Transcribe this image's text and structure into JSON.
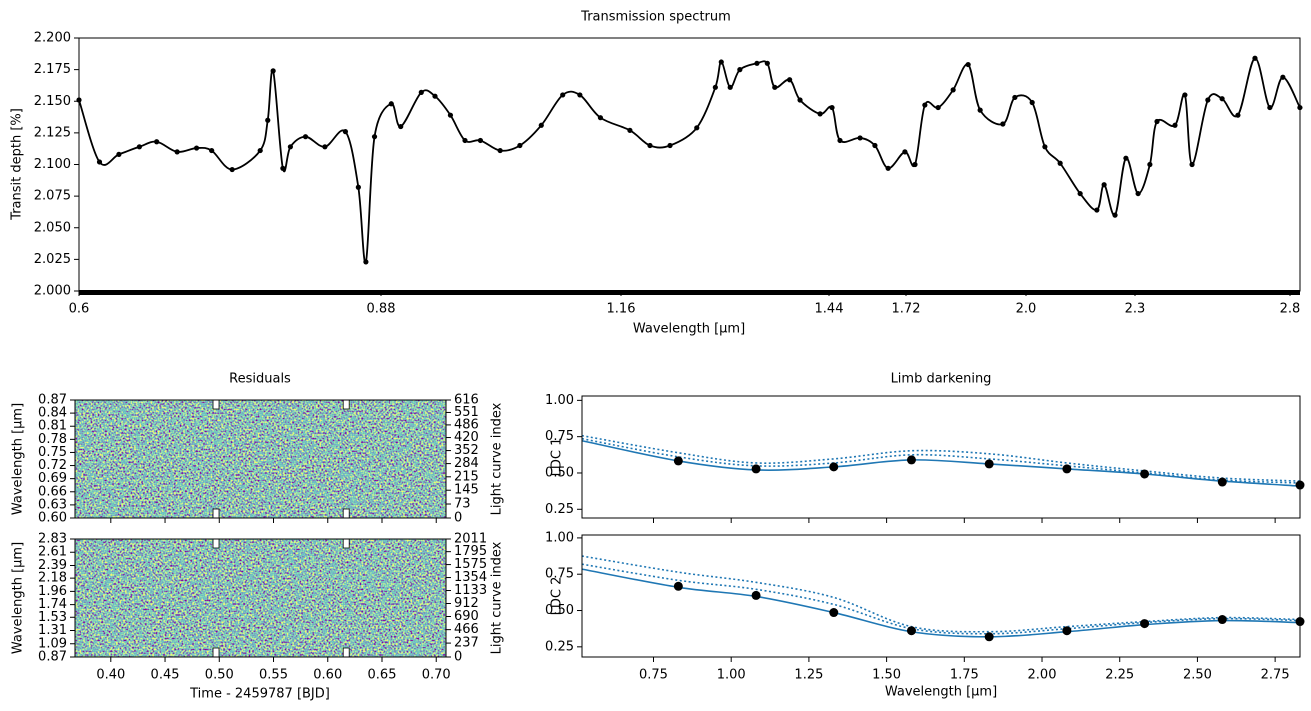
{
  "chart_data": [
    {
      "type": "line",
      "title": "Transmission spectrum",
      "xlabel": "Wavelength [μm]",
      "ylabel": "Transit depth [%]",
      "color": "#000000",
      "xlim": [
        0.6,
        2.832
      ],
      "ylim": [
        2.0,
        2.2
      ],
      "xticks": [
        0.6,
        0.88,
        1.16,
        1.44,
        1.72,
        {
          "value": 2,
          "label": "2.0"
        },
        2.3,
        2.8
      ],
      "yticks": [
        {
          "value": 2.0,
          "label": "2.000"
        },
        {
          "value": 2.025,
          "label": "2.025"
        },
        {
          "value": 2.05,
          "label": "2.050"
        },
        {
          "value": 2.075,
          "label": "2.075"
        },
        {
          "value": 2.1,
          "label": "2.100"
        },
        {
          "value": 2.125,
          "label": "2.125"
        },
        {
          "value": 2.15,
          "label": "2.150"
        },
        {
          "value": 2.175,
          "label": "2.175"
        },
        {
          "value": 2.2,
          "label": "2.200"
        }
      ],
      "x": [
        0.6,
        0.619,
        0.637,
        0.656,
        0.672,
        0.691,
        0.709,
        0.723,
        0.742,
        0.768,
        0.775,
        0.78,
        0.789,
        0.796,
        0.81,
        0.828,
        0.847,
        0.859,
        0.866,
        0.874,
        0.892,
        0.903,
        0.927,
        0.943,
        0.961,
        0.978,
        0.996,
        1.019,
        1.042,
        1.067,
        1.092,
        1.112,
        1.136,
        1.172,
        1.199,
        1.226,
        1.262,
        1.287,
        1.295,
        1.307,
        1.32,
        1.343,
        1.357,
        1.367,
        1.387,
        1.401,
        1.428,
        1.451,
        1.48,
        1.553,
        1.607,
        1.655,
        1.716,
        1.741,
        1.764,
        1.795,
        1.83,
        1.865,
        1.893,
        1.946,
        1.974,
        2.017,
        2.052,
        2.094,
        2.149,
        2.195,
        2.215,
        2.245,
        2.275,
        2.31,
        2.348,
        2.371,
        2.429,
        2.461,
        2.484,
        2.535,
        2.581,
        2.632,
        2.687,
        2.735,
        2.777,
        2.832
      ],
      "values": [
        2.151,
        2.102,
        2.108,
        2.114,
        2.118,
        2.11,
        2.113,
        2.111,
        2.096,
        2.111,
        2.135,
        2.174,
        2.097,
        2.114,
        2.122,
        2.114,
        2.126,
        2.082,
        2.023,
        2.122,
        2.148,
        2.13,
        2.157,
        2.154,
        2.139,
        2.119,
        2.119,
        2.111,
        2.115,
        2.131,
        2.155,
        2.155,
        2.137,
        2.127,
        2.115,
        2.115,
        2.129,
        2.161,
        2.181,
        2.161,
        2.175,
        2.18,
        2.18,
        2.161,
        2.167,
        2.151,
        2.14,
        2.145,
        2.119,
        2.121,
        2.115,
        2.097,
        2.11,
        2.1,
        2.147,
        2.145,
        2.159,
        2.179,
        2.143,
        2.132,
        2.153,
        2.149,
        2.114,
        2.101,
        2.077,
        2.064,
        2.084,
        2.06,
        2.105,
        2.077,
        2.1,
        2.134,
        2.131,
        2.155,
        2.1,
        2.151,
        2.152,
        2.139,
        2.184,
        2.145,
        2.169,
        2.145
      ]
    },
    {
      "type": "heatmap",
      "title": "Residuals",
      "ylabel": "Wavelength [μm]",
      "y2label": "Light curve index",
      "xlim": [
        0.367,
        0.709
      ],
      "ylim": [
        0.6,
        0.87
      ],
      "y2lim": [
        0,
        616
      ],
      "yticks": [
        {
          "value": 0.6,
          "label": "0.60"
        },
        0.63,
        0.66,
        0.69,
        0.72,
        0.75,
        0.78,
        0.81,
        0.84,
        0.87
      ],
      "y2ticks": [
        0,
        73,
        145,
        215,
        284,
        352,
        420,
        486,
        551,
        616
      ],
      "vlines": [
        0.497,
        0.617
      ]
    },
    {
      "type": "heatmap",
      "xlabel": "Time - 2459787 [BJD]",
      "ylabel": "Wavelength [μm]",
      "y2label": "Light curve index",
      "xlim": [
        0.367,
        0.709
      ],
      "ylim": [
        0.87,
        2.83
      ],
      "y2lim": [
        0,
        2011
      ],
      "xticks": [
        {
          "value": 0.4,
          "label": "0.40"
        },
        0.45,
        {
          "value": 0.5,
          "label": "0.50"
        },
        0.55,
        {
          "value": 0.6,
          "label": "0.60"
        },
        0.65,
        {
          "value": 0.7,
          "label": "0.70"
        }
      ],
      "yticks": [
        0.87,
        1.09,
        1.31,
        1.53,
        1.74,
        1.96,
        2.18,
        2.39,
        2.61,
        2.83
      ],
      "y2ticks": [
        0,
        237,
        466,
        690,
        912,
        1133,
        1354,
        1575,
        1795,
        2011
      ],
      "vlines": [
        0.497,
        0.617
      ]
    },
    {
      "type": "line",
      "title": "Limb darkening",
      "ylabel": "LDC 1",
      "xlim": [
        0.52,
        2.83
      ],
      "ylim": [
        0.19,
        1.03
      ],
      "yticks": [
        {
          "value": 0.25,
          "label": "0.25"
        },
        {
          "value": 0.5,
          "label": "0.50"
        },
        {
          "value": 0.75,
          "label": "0.75"
        },
        {
          "value": 1.0,
          "label": "1.00"
        }
      ],
      "series": [
        {
          "color": "#1f77b4",
          "linestyle": "dotted",
          "x": [
            0.52,
            0.83,
            1.08,
            1.33,
            1.58,
            1.83,
            2.08,
            2.33,
            2.58,
            2.83
          ],
          "values": [
            0.757,
            0.639,
            0.569,
            0.597,
            0.653,
            0.632,
            0.569,
            0.514,
            0.465,
            0.444
          ]
        },
        {
          "color": "#1f77b4",
          "linestyle": "dotted",
          "x": [
            0.52,
            0.83,
            1.08,
            1.33,
            1.58,
            1.83,
            2.08,
            2.33,
            2.58,
            2.83
          ],
          "values": [
            0.736,
            0.611,
            0.549,
            0.569,
            0.625,
            0.597,
            0.549,
            0.5,
            0.451,
            0.431
          ]
        },
        {
          "color": "#1f77b4",
          "linestyle": "solid",
          "x": [
            0.52,
            0.83,
            1.08,
            1.33,
            1.58,
            1.83,
            2.08,
            2.33,
            2.58,
            2.83
          ],
          "values": [
            0.722,
            0.583,
            0.521,
            0.542,
            0.59,
            0.5625,
            0.528,
            0.493,
            0.444,
            0.41
          ]
        },
        {
          "type": "scatter",
          "color": "#000000",
          "x": [
            0.83,
            1.08,
            1.33,
            1.58,
            1.83,
            2.08,
            2.33,
            2.58,
            2.83
          ],
          "values": [
            0.583,
            0.528,
            0.542,
            0.59,
            0.5625,
            0.528,
            0.493,
            0.4375,
            0.417
          ]
        }
      ]
    },
    {
      "type": "line",
      "ylabel": "LDC 2",
      "xlabel": "Wavelength [μm]",
      "xlim": [
        0.52,
        2.83
      ],
      "ylim": [
        0.18,
        1.02
      ],
      "xticks": [
        0.75,
        {
          "value": 1.0,
          "label": "1.00"
        },
        1.25,
        {
          "value": 1.5,
          "label": "1.50"
        },
        1.75,
        {
          "value": 2.0,
          "label": "2.00"
        },
        2.25,
        {
          "value": 2.5,
          "label": "2.50"
        },
        2.75
      ],
      "yticks": [
        {
          "value": 0.25,
          "label": "0.25"
        },
        {
          "value": 0.5,
          "label": "0.50"
        },
        {
          "value": 0.75,
          "label": "0.75"
        },
        {
          "value": 1.0,
          "label": "1.00"
        }
      ],
      "series": [
        {
          "color": "#1f77b4",
          "linestyle": "dotted",
          "x": [
            0.52,
            0.83,
            1.08,
            1.33,
            1.58,
            1.83,
            2.08,
            2.33,
            2.58,
            2.83
          ],
          "values": [
            0.875,
            0.764,
            0.694,
            0.59,
            0.389,
            0.354,
            0.389,
            0.424,
            0.451,
            0.438
          ]
        },
        {
          "color": "#1f77b4",
          "linestyle": "dotted",
          "x": [
            0.52,
            0.83,
            1.08,
            1.33,
            1.58,
            1.83,
            2.08,
            2.33,
            2.58,
            2.83
          ],
          "values": [
            0.819,
            0.708,
            0.646,
            0.542,
            0.375,
            0.34,
            0.375,
            0.417,
            0.444,
            0.431
          ]
        },
        {
          "color": "#1f77b4",
          "linestyle": "solid",
          "x": [
            0.52,
            0.83,
            1.08,
            1.33,
            1.58,
            1.83,
            2.08,
            2.33,
            2.58,
            2.83
          ],
          "values": [
            0.785,
            0.66,
            0.597,
            0.486,
            0.354,
            0.319,
            0.354,
            0.403,
            0.431,
            0.417
          ]
        },
        {
          "type": "scatter",
          "color": "#000000",
          "x": [
            0.83,
            1.08,
            1.33,
            1.58,
            1.83,
            2.08,
            2.33,
            2.58,
            2.83
          ],
          "values": [
            0.667,
            0.604,
            0.486,
            0.361,
            0.319,
            0.361,
            0.41,
            0.438,
            0.424
          ]
        }
      ]
    }
  ]
}
